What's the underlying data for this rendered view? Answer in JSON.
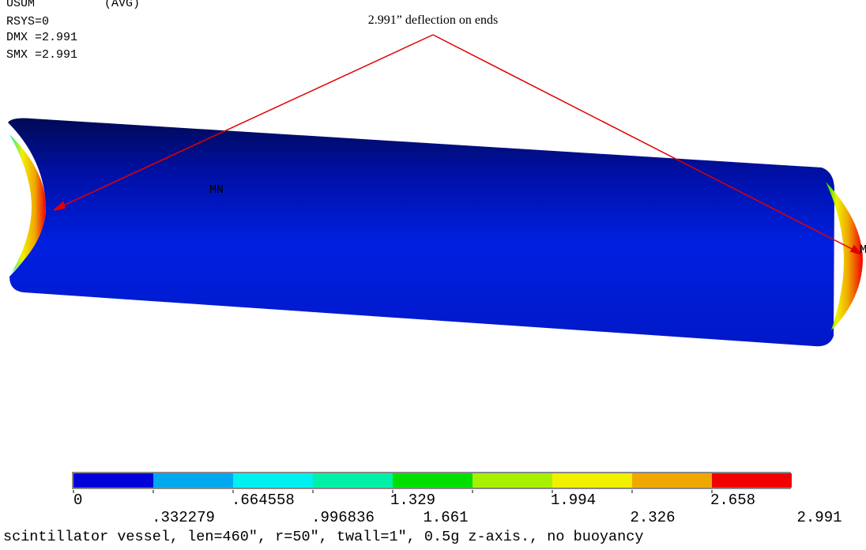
{
  "header": {
    "lines": [
      "USUM",
      "(AVG)",
      "RSYS=0",
      "DMX =2.991",
      "SMX =2.991"
    ]
  },
  "annotation": "2.991” deflection on ends",
  "model": {
    "min_label": "MN",
    "max_label": "M"
  },
  "legend": {
    "colors": [
      "#0000d8",
      "#00a8f0",
      "#00f0f0",
      "#00f0a8",
      "#00e000",
      "#a8f000",
      "#f0f000",
      "#f0a800",
      "#f00000"
    ],
    "labels": [
      "0",
      ".332279",
      ".664558",
      ".996836",
      "1.329",
      "1.661",
      "1.994",
      "2.326",
      "2.658",
      "2.991"
    ]
  },
  "caption": "scintillator vessel, len=460\", r=50\", twall=1\", 0.5g z-axis., no buoyancy"
}
